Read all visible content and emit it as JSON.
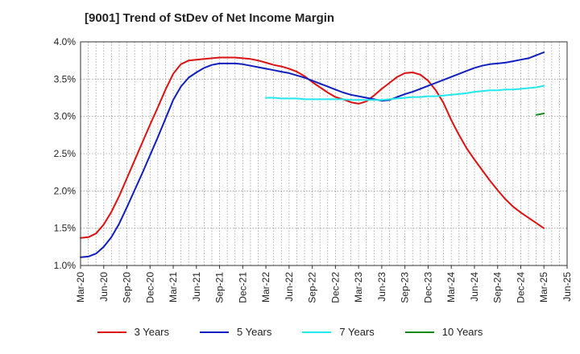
{
  "chart_data": {
    "type": "line",
    "title": "[9001]  Trend of StDev of Net Income Margin",
    "xlabel": "",
    "ylabel": "",
    "x_ticks": [
      "Mar-20",
      "Jun-20",
      "Sep-20",
      "Dec-20",
      "Mar-21",
      "Jun-21",
      "Sep-21",
      "Dec-21",
      "Mar-22",
      "Jun-22",
      "Sep-22",
      "Dec-22",
      "Mar-23",
      "Jun-23",
      "Sep-23",
      "Dec-23",
      "Mar-24",
      "Jun-24",
      "Sep-24",
      "Dec-24",
      "Mar-25",
      "Jun-25"
    ],
    "y_ticks": [
      "1.0%",
      "1.5%",
      "2.0%",
      "2.5%",
      "3.0%",
      "3.5%",
      "4.0%"
    ],
    "ylim": [
      1.0,
      4.0
    ],
    "grid": true,
    "legend_position": "bottom",
    "series": [
      {
        "name": "3 Years",
        "color": "#dd1111",
        "x": [
          "2020-03",
          "2020-04",
          "2020-05",
          "2020-06",
          "2020-07",
          "2020-08",
          "2020-09",
          "2020-10",
          "2020-11",
          "2020-12",
          "2021-01",
          "2021-02",
          "2021-03",
          "2021-04",
          "2021-05",
          "2021-06",
          "2021-07",
          "2021-08",
          "2021-09",
          "2021-10",
          "2021-11",
          "2021-12",
          "2022-01",
          "2022-02",
          "2022-03",
          "2022-04",
          "2022-05",
          "2022-06",
          "2022-07",
          "2022-08",
          "2022-09",
          "2022-10",
          "2022-11",
          "2022-12",
          "2023-01",
          "2023-02",
          "2023-03",
          "2023-04",
          "2023-05",
          "2023-06",
          "2023-07",
          "2023-08",
          "2023-09",
          "2023-10",
          "2023-11",
          "2023-12",
          "2024-01",
          "2024-02",
          "2024-03",
          "2024-04",
          "2024-05",
          "2024-06",
          "2024-07",
          "2024-08",
          "2024-09",
          "2024-10",
          "2024-11",
          "2024-12",
          "2025-01",
          "2025-02",
          "2025-03"
        ],
        "values": [
          1.37,
          1.38,
          1.43,
          1.55,
          1.72,
          1.93,
          2.17,
          2.41,
          2.65,
          2.89,
          3.12,
          3.36,
          3.57,
          3.7,
          3.75,
          3.76,
          3.77,
          3.78,
          3.79,
          3.79,
          3.79,
          3.78,
          3.77,
          3.75,
          3.72,
          3.69,
          3.67,
          3.64,
          3.6,
          3.54,
          3.46,
          3.39,
          3.32,
          3.26,
          3.23,
          3.19,
          3.17,
          3.2,
          3.28,
          3.37,
          3.45,
          3.53,
          3.58,
          3.59,
          3.56,
          3.48,
          3.35,
          3.18,
          2.95,
          2.75,
          2.57,
          2.42,
          2.28,
          2.14,
          2.01,
          1.89,
          1.79,
          1.71,
          1.64,
          1.57,
          1.5
        ]
      },
      {
        "name": "5 Years",
        "color": "#0f1fbf",
        "x": [
          "2020-03",
          "2020-04",
          "2020-05",
          "2020-06",
          "2020-07",
          "2020-08",
          "2020-09",
          "2020-10",
          "2020-11",
          "2020-12",
          "2021-01",
          "2021-02",
          "2021-03",
          "2021-04",
          "2021-05",
          "2021-06",
          "2021-07",
          "2021-08",
          "2021-09",
          "2021-10",
          "2021-11",
          "2021-12",
          "2022-01",
          "2022-02",
          "2022-03",
          "2022-04",
          "2022-05",
          "2022-06",
          "2022-07",
          "2022-08",
          "2022-09",
          "2022-10",
          "2022-11",
          "2022-12",
          "2023-01",
          "2023-02",
          "2023-03",
          "2023-04",
          "2023-05",
          "2023-06",
          "2023-07",
          "2023-08",
          "2023-09",
          "2023-10",
          "2023-11",
          "2023-12",
          "2024-01",
          "2024-02",
          "2024-03",
          "2024-04",
          "2024-05",
          "2024-06",
          "2024-07",
          "2024-08",
          "2024-09",
          "2024-10",
          "2024-11",
          "2024-12",
          "2025-01",
          "2025-02",
          "2025-03"
        ],
        "values": [
          1.11,
          1.12,
          1.16,
          1.25,
          1.38,
          1.56,
          1.78,
          2.01,
          2.24,
          2.48,
          2.72,
          2.97,
          3.22,
          3.4,
          3.52,
          3.59,
          3.65,
          3.69,
          3.71,
          3.71,
          3.71,
          3.7,
          3.68,
          3.66,
          3.64,
          3.62,
          3.6,
          3.58,
          3.55,
          3.52,
          3.48,
          3.44,
          3.4,
          3.36,
          3.32,
          3.29,
          3.27,
          3.25,
          3.23,
          3.21,
          3.22,
          3.26,
          3.3,
          3.33,
          3.37,
          3.41,
          3.45,
          3.49,
          3.53,
          3.57,
          3.61,
          3.65,
          3.68,
          3.7,
          3.71,
          3.72,
          3.74,
          3.76,
          3.78,
          3.82,
          3.86
        ]
      },
      {
        "name": "7 Years",
        "color": "#22e8ee",
        "x": [
          "2022-03",
          "2022-04",
          "2022-05",
          "2022-06",
          "2022-07",
          "2022-08",
          "2022-09",
          "2022-10",
          "2022-11",
          "2022-12",
          "2023-01",
          "2023-02",
          "2023-03",
          "2023-04",
          "2023-05",
          "2023-06",
          "2023-07",
          "2023-08",
          "2023-09",
          "2023-10",
          "2023-11",
          "2023-12",
          "2024-01",
          "2024-02",
          "2024-03",
          "2024-04",
          "2024-05",
          "2024-06",
          "2024-07",
          "2024-08",
          "2024-09",
          "2024-10",
          "2024-11",
          "2024-12",
          "2025-01",
          "2025-02",
          "2025-03"
        ],
        "values": [
          3.25,
          3.25,
          3.24,
          3.24,
          3.24,
          3.23,
          3.23,
          3.23,
          3.23,
          3.23,
          3.23,
          3.22,
          3.22,
          3.22,
          3.22,
          3.22,
          3.23,
          3.24,
          3.25,
          3.26,
          3.26,
          3.27,
          3.27,
          3.28,
          3.29,
          3.3,
          3.31,
          3.33,
          3.34,
          3.35,
          3.35,
          3.36,
          3.36,
          3.37,
          3.38,
          3.39,
          3.41
        ]
      },
      {
        "name": "10 Years",
        "color": "#138a13",
        "x": [
          "2025-02",
          "2025-03"
        ],
        "values": [
          3.02,
          3.04
        ]
      }
    ]
  }
}
